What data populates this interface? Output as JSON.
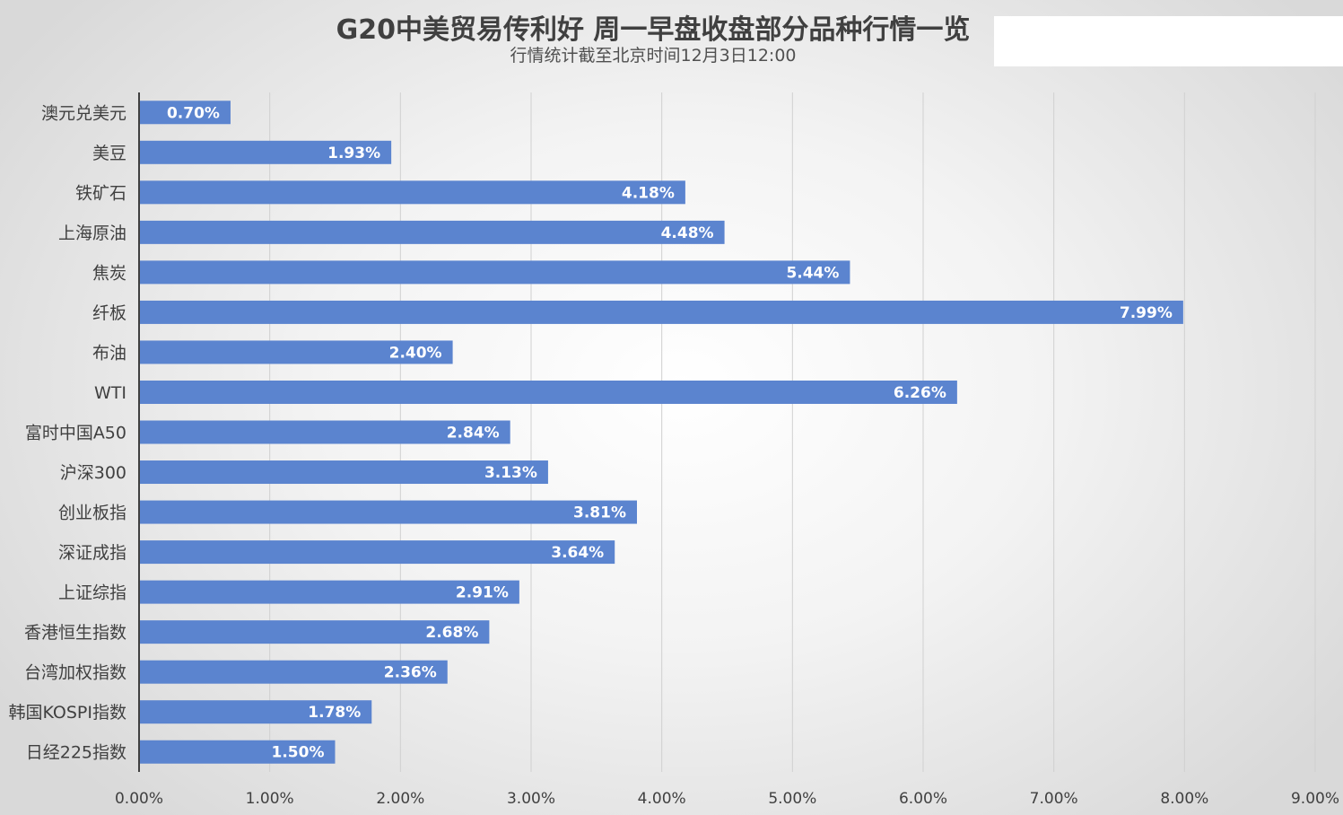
{
  "chart_data": {
    "type": "bar",
    "orientation": "horizontal",
    "title": "G20中美贸易传利好 周一早盘收盘部分品种行情一览",
    "subtitle": "行情统计截至北京时间12月3日12:00",
    "xlabel": "",
    "ylabel": "",
    "xlim": [
      0,
      9
    ],
    "grid": true,
    "legend": "none",
    "bar_color": "#5b84cf",
    "categories": [
      "澳元兑美元",
      "美豆",
      "铁矿石",
      "上海原油",
      "焦炭",
      "纤板",
      "布油",
      "WTI",
      "富时中国A50",
      "沪深300",
      "创业板指",
      "深证成指",
      "上证综指",
      "香港恒生指数",
      "台湾加权指数",
      "韩国KOSPI指数",
      "日经225指数"
    ],
    "values": [
      0.7,
      1.93,
      4.18,
      4.48,
      5.44,
      7.99,
      2.4,
      6.26,
      2.84,
      3.13,
      3.81,
      3.64,
      2.91,
      2.68,
      2.36,
      1.78,
      1.5
    ],
    "data_labels": [
      "0.70%",
      "1.93%",
      "4.18%",
      "4.48%",
      "5.44%",
      "7.99%",
      "2.40%",
      "6.26%",
      "2.84%",
      "3.13%",
      "3.81%",
      "3.64%",
      "2.91%",
      "2.68%",
      "2.36%",
      "1.78%",
      "1.50%"
    ],
    "x_ticks": [
      0,
      1,
      2,
      3,
      4,
      5,
      6,
      7,
      8,
      9
    ],
    "x_tick_labels": [
      "0.00%",
      "1.00%",
      "2.00%",
      "3.00%",
      "4.00%",
      "5.00%",
      "6.00%",
      "7.00%",
      "8.00%",
      "9.00%"
    ]
  }
}
